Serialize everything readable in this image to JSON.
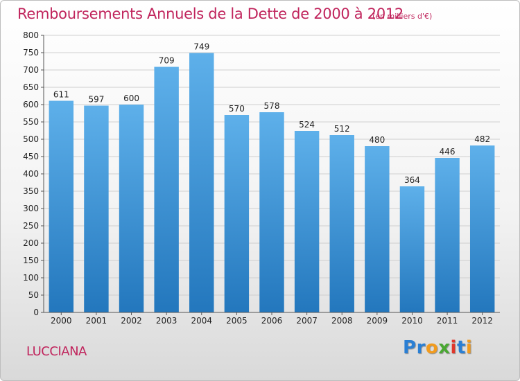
{
  "title": "Remboursements Annuels de la Dette de 2000 à 2012",
  "subtitle": "(en milliers d'€)",
  "commune": "LUCCIANA",
  "logo": {
    "text": "Proxiti",
    "letters": [
      {
        "ch": "P",
        "color": "#2a7fd4"
      },
      {
        "ch": "r",
        "color": "#2a7fd4"
      },
      {
        "ch": "o",
        "color": "#f29b1d"
      },
      {
        "ch": "x",
        "color": "#4aa832"
      },
      {
        "ch": "i",
        "color": "#e0362b"
      },
      {
        "ch": "t",
        "color": "#2a7fd4"
      },
      {
        "ch": "i",
        "color": "#f29b1d"
      }
    ]
  },
  "colors": {
    "title": "#c0245c",
    "bar_top": "#5eb0ea",
    "bar_bottom": "#2377bd",
    "grid": "#cfcfcf"
  },
  "chart_data": {
    "type": "bar",
    "title": "Remboursements Annuels de la Dette de 2000 à 2012",
    "xlabel": "",
    "ylabel": "en milliers d'€",
    "categories": [
      "2000",
      "2001",
      "2002",
      "2003",
      "2004",
      "2005",
      "2006",
      "2007",
      "2008",
      "2009",
      "2010",
      "2011",
      "2012"
    ],
    "values": [
      611,
      597,
      600,
      709,
      749,
      570,
      578,
      524,
      512,
      480,
      364,
      446,
      482
    ],
    "ylim": [
      0,
      800
    ],
    "yticks": [
      0,
      50,
      100,
      150,
      200,
      250,
      300,
      350,
      400,
      450,
      500,
      550,
      600,
      650,
      700,
      750,
      800
    ],
    "grid": true
  }
}
